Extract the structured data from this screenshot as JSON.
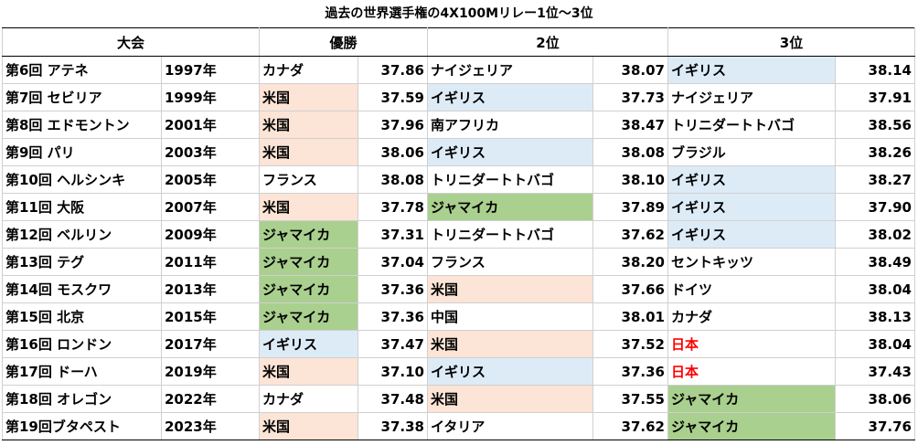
{
  "title": "過去の世界選手権の4X100Mリレー1位～3位",
  "headers": {
    "meet": "大会",
    "first": "優勝",
    "second": "2位",
    "third": "3位"
  },
  "colors": {
    "米国": "#fce4d6",
    "イギリス": "#ddebf7",
    "ジャマイカ": "#a9d08e",
    "日本": "#ff0000"
  },
  "rows": [
    {
      "meet": "第6回 アテネ",
      "year": "1997年",
      "p1": "カナダ",
      "t1": "37.86",
      "p2": "ナイジェリア",
      "t2": "38.07",
      "p3": "イギリス",
      "t3": "38.14"
    },
    {
      "meet": "第7回 セビリア",
      "year": "1999年",
      "p1": "米国",
      "t1": "37.59",
      "p2": "イギリス",
      "t2": "37.73",
      "p3": "ナイジェリア",
      "t3": "37.91"
    },
    {
      "meet": "第8回 エドモントン",
      "year": "2001年",
      "p1": "米国",
      "t1": "37.96",
      "p2": "南アフリカ",
      "t2": "38.47",
      "p3": "トリニダートトバゴ",
      "t3": "38.56"
    },
    {
      "meet": "第9回 パリ",
      "year": "2003年",
      "p1": "米国",
      "t1": "38.06",
      "p2": "イギリス",
      "t2": "38.08",
      "p3": "ブラジル",
      "t3": "38.26"
    },
    {
      "meet": "第10回 ヘルシンキ",
      "year": "2005年",
      "p1": "フランス",
      "t1": "38.08",
      "p2": "トリニダートトバゴ",
      "t2": "38.10",
      "p3": "イギリス",
      "t3": "38.27"
    },
    {
      "meet": "第11回 大阪",
      "year": "2007年",
      "p1": "米国",
      "t1": "37.78",
      "p2": "ジャマイカ",
      "t2": "37.89",
      "p3": "イギリス",
      "t3": "37.90"
    },
    {
      "meet": "第12回 ベルリン",
      "year": "2009年",
      "p1": "ジャマイカ",
      "t1": "37.31",
      "p2": "トリニダートトバゴ",
      "t2": "37.62",
      "p3": "イギリス",
      "t3": "38.02"
    },
    {
      "meet": "第13回 テグ",
      "year": "2011年",
      "p1": "ジャマイカ",
      "t1": "37.04",
      "p2": "フランス",
      "t2": "38.20",
      "p3": "セントキッツ",
      "t3": "38.49"
    },
    {
      "meet": "第14回 モスクワ",
      "year": "2013年",
      "p1": "ジャマイカ",
      "t1": "37.36",
      "p2": "米国",
      "t2": "37.66",
      "p3": "ドイツ",
      "t3": "38.04"
    },
    {
      "meet": "第15回 北京",
      "year": "2015年",
      "p1": "ジャマイカ",
      "t1": "37.36",
      "p2": "中国",
      "t2": "38.01",
      "p3": "カナダ",
      "t3": "38.13"
    },
    {
      "meet": "第16回 ロンドン",
      "year": "2017年",
      "p1": "イギリス",
      "t1": "37.47",
      "p2": "米国",
      "t2": "37.52",
      "p3": "日本",
      "t3": "38.04"
    },
    {
      "meet": "第17回 ドーハ",
      "year": "2019年",
      "p1": "米国",
      "t1": "37.10",
      "p2": "イギリス",
      "t2": "37.36",
      "p3": "日本",
      "t3": "37.43"
    },
    {
      "meet": "第18回 オレゴン",
      "year": "2022年",
      "p1": "カナダ",
      "t1": "37.48",
      "p2": "米国",
      "t2": "37.55",
      "p3": "ジャマイカ",
      "t3": "38.06"
    },
    {
      "meet": "第19回ブタペスト",
      "year": "2023年",
      "p1": "米国",
      "t1": "37.38",
      "p2": "イタリア",
      "t2": "37.62",
      "p3": "ジャマイカ",
      "t3": "37.76"
    }
  ]
}
